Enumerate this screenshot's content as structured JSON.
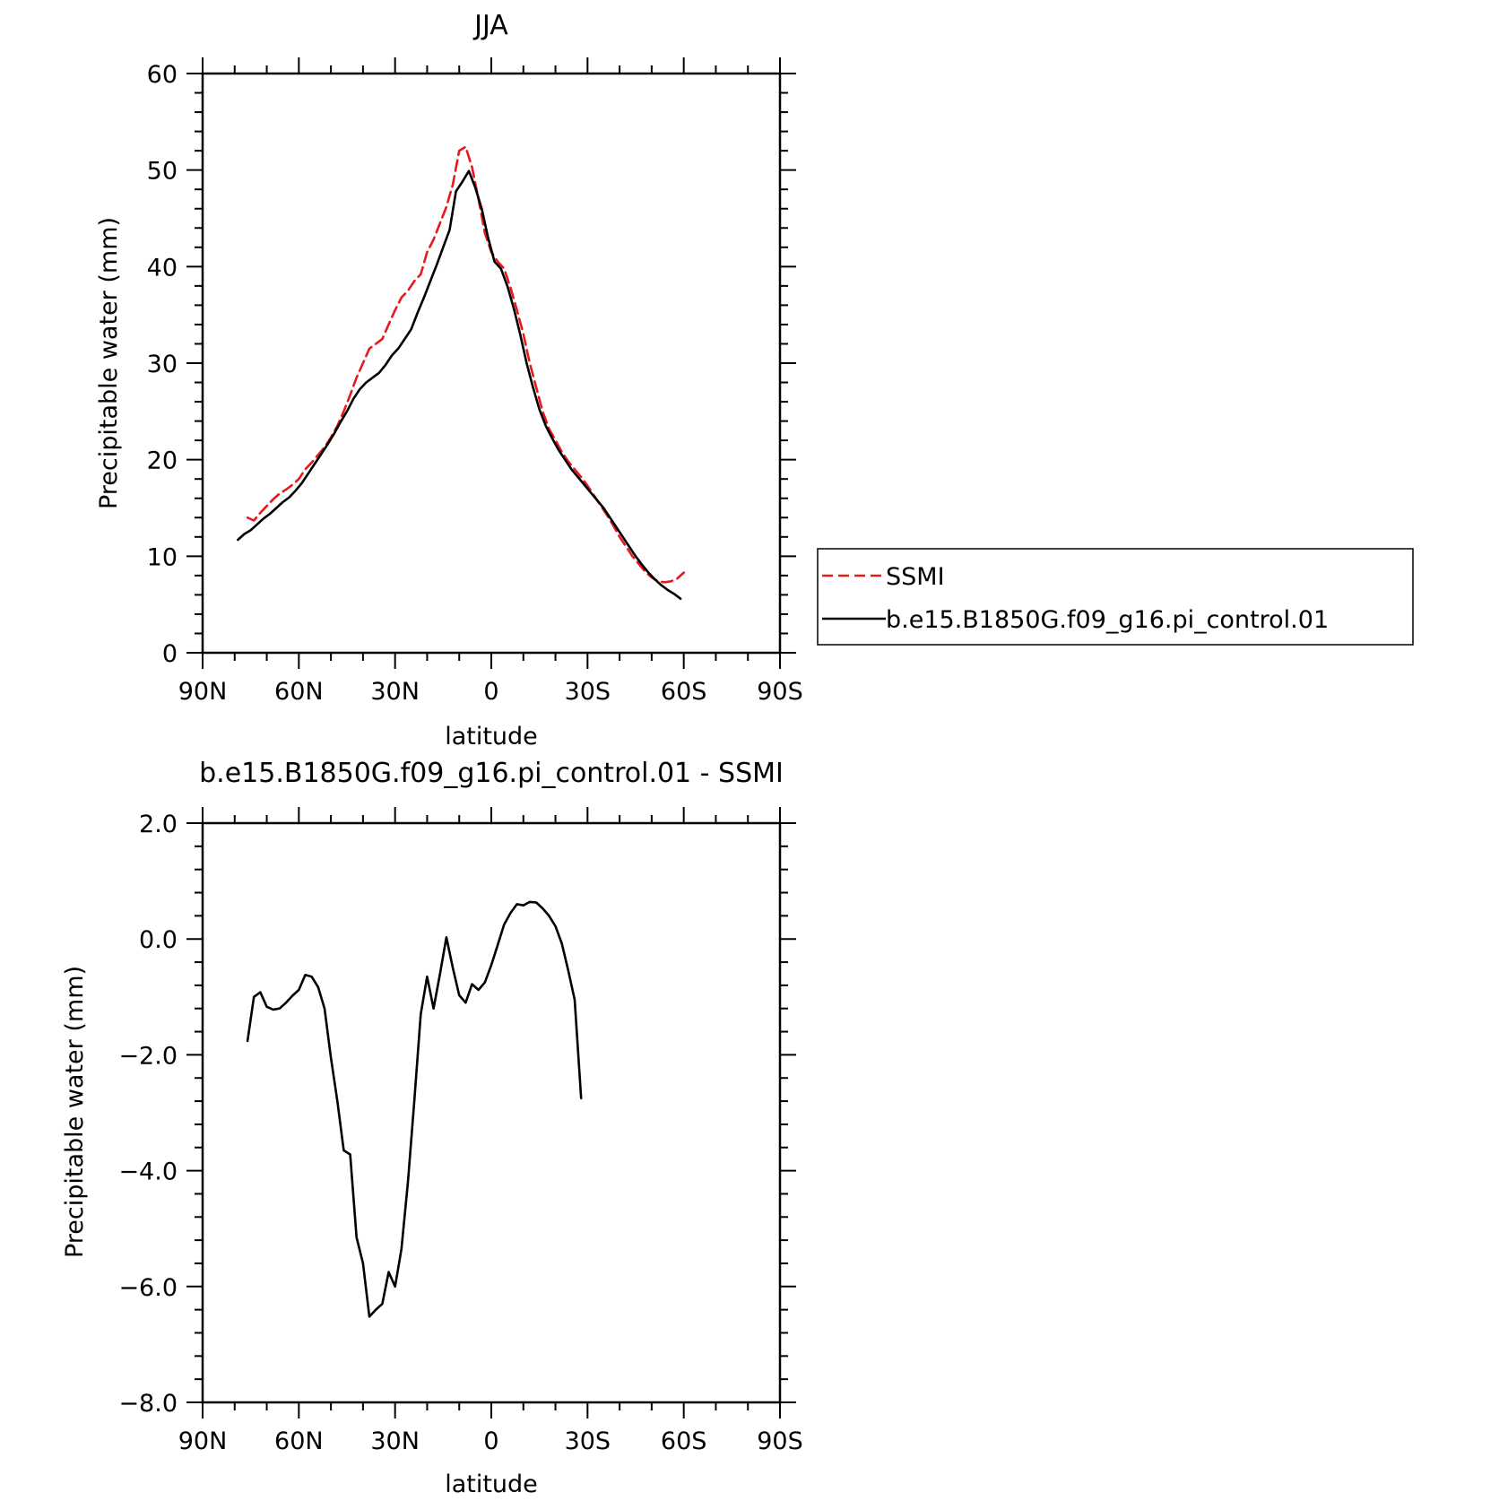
{
  "chart_data": [
    {
      "type": "line",
      "title": "JJA",
      "xlabel": "latitude",
      "ylabel": "Precipitable water (mm)",
      "xlim": [
        90,
        -90
      ],
      "ylim": [
        0,
        60
      ],
      "x_ticks": [
        90,
        60,
        30,
        0,
        -30,
        -60,
        -90
      ],
      "x_tick_labels": [
        "90N",
        "60N",
        "30N",
        "0",
        "30S",
        "60S",
        "90S"
      ],
      "y_ticks": [
        0,
        10,
        20,
        30,
        40,
        50,
        60
      ],
      "y_tick_labels": [
        "0",
        "10",
        "20",
        "30",
        "40",
        "50",
        "60"
      ],
      "legend_position": "outside-right",
      "series": [
        {
          "name": "SSMI",
          "color": "#e8191c",
          "dash": "dashed",
          "points": [
            [
              76,
              14.0
            ],
            [
              74,
              13.7
            ],
            [
              72,
              14.5
            ],
            [
              70,
              15.2
            ],
            [
              68,
              15.9
            ],
            [
              66,
              16.5
            ],
            [
              64,
              16.9
            ],
            [
              62,
              17.4
            ],
            [
              60,
              18.0
            ],
            [
              58,
              19.0
            ],
            [
              56,
              19.7
            ],
            [
              54,
              20.5
            ],
            [
              52,
              21.3
            ],
            [
              50,
              22.3
            ],
            [
              48,
              23.5
            ],
            [
              46,
              25.0
            ],
            [
              44,
              26.7
            ],
            [
              42,
              28.5
            ],
            [
              40,
              30.0
            ],
            [
              38,
              31.5
            ],
            [
              36,
              32.0
            ],
            [
              34,
              32.5
            ],
            [
              32,
              34.0
            ],
            [
              30,
              35.5
            ],
            [
              28,
              36.8
            ],
            [
              26,
              37.5
            ],
            [
              24,
              38.5
            ],
            [
              22,
              39.2
            ],
            [
              20,
              41.5
            ],
            [
              18,
              42.8
            ],
            [
              16,
              44.5
            ],
            [
              14,
              46.2
            ],
            [
              12,
              48.5
            ],
            [
              10,
              52.0
            ],
            [
              8,
              52.4
            ],
            [
              6,
              50.3
            ],
            [
              4,
              47.0
            ],
            [
              2,
              43.5
            ],
            [
              0,
              41.5
            ],
            [
              -2,
              40.5
            ],
            [
              -4,
              39.8
            ],
            [
              -6,
              37.8
            ],
            [
              -8,
              35.5
            ],
            [
              -10,
              33.0
            ],
            [
              -12,
              30.0
            ],
            [
              -14,
              27.5
            ],
            [
              -16,
              25.0
            ],
            [
              -18,
              23.2
            ],
            [
              -20,
              22.0
            ],
            [
              -22,
              20.8
            ],
            [
              -24,
              19.8
            ],
            [
              -26,
              19.0
            ],
            [
              -28,
              18.2
            ],
            [
              -30,
              17.3
            ],
            [
              -32,
              16.3
            ],
            [
              -34,
              15.3
            ],
            [
              -36,
              14.3
            ],
            [
              -38,
              13.2
            ],
            [
              -40,
              12.0
            ],
            [
              -42,
              11.0
            ],
            [
              -44,
              10.0
            ],
            [
              -46,
              9.2
            ],
            [
              -48,
              8.4
            ],
            [
              -50,
              7.8
            ],
            [
              -52,
              7.4
            ],
            [
              -54,
              7.3
            ],
            [
              -56,
              7.4
            ],
            [
              -58,
              7.7
            ],
            [
              -60,
              8.3
            ]
          ]
        },
        {
          "name": "b.e15.B1850G.f09_g16.pi_control.01",
          "color": "#000000",
          "dash": "solid",
          "points": [
            [
              79,
              11.7
            ],
            [
              77,
              12.3
            ],
            [
              75,
              12.7
            ],
            [
              73,
              13.3
            ],
            [
              71,
              13.9
            ],
            [
              69,
              14.4
            ],
            [
              67,
              15.0
            ],
            [
              65,
              15.6
            ],
            [
              63,
              16.1
            ],
            [
              61,
              16.8
            ],
            [
              59,
              17.6
            ],
            [
              57,
              18.6
            ],
            [
              55,
              19.6
            ],
            [
              53,
              20.6
            ],
            [
              51,
              21.6
            ],
            [
              49,
              22.7
            ],
            [
              47,
              23.9
            ],
            [
              45,
              25.0
            ],
            [
              43,
              26.3
            ],
            [
              41,
              27.3
            ],
            [
              39,
              28.0
            ],
            [
              37,
              28.5
            ],
            [
              35,
              29.0
            ],
            [
              33,
              29.8
            ],
            [
              31,
              30.8
            ],
            [
              29,
              31.5
            ],
            [
              27,
              32.5
            ],
            [
              25,
              33.5
            ],
            [
              23,
              35.2
            ],
            [
              21,
              36.8
            ],
            [
              19,
              38.5
            ],
            [
              17,
              40.2
            ],
            [
              15,
              42.0
            ],
            [
              13,
              43.8
            ],
            [
              11,
              47.8
            ],
            [
              9,
              48.8
            ],
            [
              7,
              49.9
            ],
            [
              5,
              48.2
            ],
            [
              3,
              46.0
            ],
            [
              1,
              43.0
            ],
            [
              -1,
              40.5
            ],
            [
              -3,
              39.8
            ],
            [
              -5,
              38.0
            ],
            [
              -7,
              35.7
            ],
            [
              -9,
              33.0
            ],
            [
              -11,
              30.0
            ],
            [
              -13,
              27.5
            ],
            [
              -15,
              25.2
            ],
            [
              -17,
              23.5
            ],
            [
              -19,
              22.2
            ],
            [
              -21,
              21.0
            ],
            [
              -23,
              20.0
            ],
            [
              -25,
              19.0
            ],
            [
              -27,
              18.2
            ],
            [
              -29,
              17.4
            ],
            [
              -31,
              16.6
            ],
            [
              -33,
              15.8
            ],
            [
              -35,
              15.0
            ],
            [
              -37,
              14.0
            ],
            [
              -39,
              13.0
            ],
            [
              -41,
              12.0
            ],
            [
              -43,
              11.0
            ],
            [
              -45,
              10.0
            ],
            [
              -47,
              9.1
            ],
            [
              -49,
              8.3
            ],
            [
              -51,
              7.6
            ],
            [
              -53,
              7.0
            ],
            [
              -55,
              6.5
            ],
            [
              -57,
              6.1
            ],
            [
              -59,
              5.6
            ]
          ]
        }
      ]
    },
    {
      "type": "line",
      "title": "b.e15.B1850G.f09_g16.pi_control.01 - SSMI",
      "xlabel": "latitude",
      "ylabel": "Precipitable water (mm)",
      "xlim": [
        90,
        -90
      ],
      "ylim": [
        -8,
        2
      ],
      "x_ticks": [
        90,
        60,
        30,
        0,
        -30,
        -60,
        -90
      ],
      "x_tick_labels": [
        "90N",
        "60N",
        "30N",
        "0",
        "30S",
        "60S",
        "90S"
      ],
      "y_ticks": [
        2,
        0,
        -2,
        -4,
        -6,
        -8
      ],
      "y_tick_labels": [
        "2.0",
        "0.0",
        "−2.0",
        "−4.0",
        "−6.0",
        "−8.0"
      ],
      "series": [
        {
          "color": "#000000",
          "dash": "solid",
          "points": [
            [
              76,
              -1.76
            ],
            [
              74,
              -1.0
            ],
            [
              72,
              -0.92
            ],
            [
              70,
              -1.17
            ],
            [
              68,
              -1.22
            ],
            [
              66,
              -1.2
            ],
            [
              64,
              -1.1
            ],
            [
              62,
              -0.98
            ],
            [
              60,
              -0.88
            ],
            [
              58,
              -0.62
            ],
            [
              56,
              -0.65
            ],
            [
              54,
              -0.83
            ],
            [
              52,
              -1.2
            ],
            [
              50,
              -2.05
            ],
            [
              48,
              -2.8
            ],
            [
              46,
              -3.65
            ],
            [
              44,
              -3.72
            ],
            [
              42,
              -5.15
            ],
            [
              40,
              -5.6
            ],
            [
              38,
              -6.52
            ],
            [
              36,
              -6.4
            ],
            [
              34,
              -6.3
            ],
            [
              32,
              -5.75
            ],
            [
              30,
              -6.0
            ],
            [
              28,
              -5.35
            ],
            [
              26,
              -4.2
            ],
            [
              24,
              -2.8
            ],
            [
              22,
              -1.3
            ],
            [
              20,
              -0.65
            ],
            [
              18,
              -1.2
            ],
            [
              16,
              -0.6
            ],
            [
              14,
              0.03
            ],
            [
              12,
              -0.5
            ],
            [
              10,
              -0.97
            ],
            [
              8,
              -1.1
            ],
            [
              6,
              -0.78
            ],
            [
              4,
              -0.88
            ],
            [
              2,
              -0.75
            ],
            [
              0,
              -0.45
            ],
            [
              -2,
              -0.1
            ],
            [
              -4,
              0.25
            ],
            [
              -6,
              0.45
            ],
            [
              -8,
              0.6
            ],
            [
              -10,
              0.58
            ],
            [
              -12,
              0.64
            ],
            [
              -14,
              0.63
            ],
            [
              -16,
              0.53
            ],
            [
              -18,
              0.4
            ],
            [
              -20,
              0.22
            ],
            [
              -22,
              -0.08
            ],
            [
              -24,
              -0.55
            ],
            [
              -26,
              -1.05
            ],
            [
              -28,
              -2.75
            ]
          ]
        }
      ]
    }
  ]
}
